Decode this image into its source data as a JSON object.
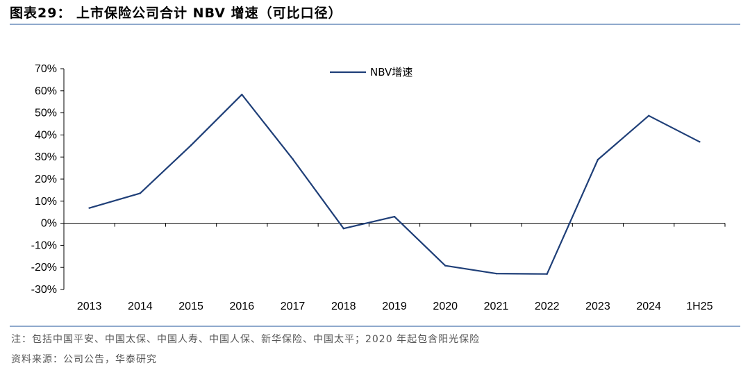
{
  "figure": {
    "title": "图表29：  上市保险公司合计 NBV 增速（可比口径）"
  },
  "chart_data": {
    "type": "line",
    "title": "",
    "xlabel": "",
    "ylabel": "",
    "categories": [
      "2013",
      "2014",
      "2015",
      "2016",
      "2017",
      "2018",
      "2019",
      "2020",
      "2021",
      "2022",
      "2023",
      "2024",
      "1H25"
    ],
    "series": [
      {
        "name": "NBV增速",
        "color": "#1f3f78",
        "values": [
          6.9,
          13.6,
          35.3,
          58.3,
          29.1,
          -2.4,
          3.0,
          -19.2,
          -22.8,
          -23.0,
          28.8,
          48.7,
          36.9
        ]
      }
    ],
    "ylim": [
      -30,
      70
    ],
    "yticks": [
      70,
      60,
      50,
      40,
      30,
      20,
      10,
      0,
      -10,
      -20,
      -30
    ],
    "y_tick_suffix": "%",
    "legend": {
      "label": "NBV增速",
      "position": "top-center"
    }
  },
  "notes": {
    "note": "注：包括中国平安、中国太保、中国人寿、中国人保、新华保险、中国太平；2020 年起包含阳光保险",
    "source": "资料来源：公司公告，华泰研究"
  }
}
